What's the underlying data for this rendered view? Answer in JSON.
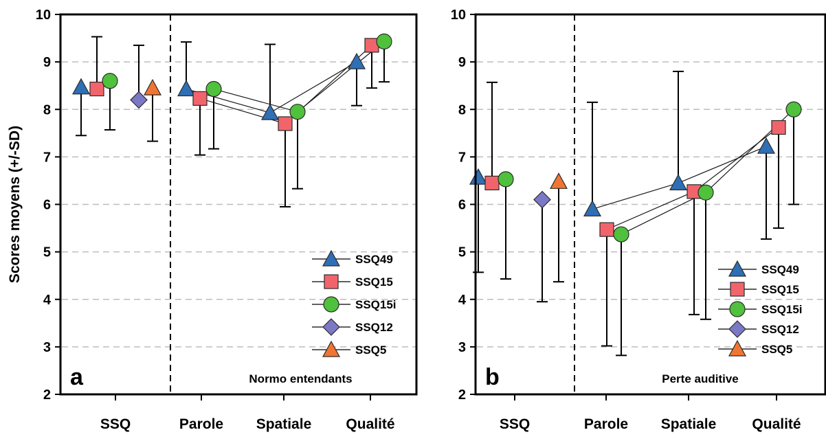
{
  "colors": {
    "SSQ49": "#2f6fb5",
    "SSQ15": "#f2646b",
    "SSQ15i": "#4fc13c",
    "SSQ12": "#7b79c6",
    "SSQ5": "#f07532"
  },
  "chart_data": [
    {
      "type": "scatter",
      "title": "",
      "ylabel": "Scores moyens (+/-SD)",
      "ylim": [
        2,
        10
      ],
      "yticks": [
        2,
        3,
        4,
        5,
        6,
        7,
        8,
        9,
        10
      ],
      "grid": "horizontal dashed",
      "legend_position": "bottom-right",
      "panel_letter": "a",
      "group_label": "Normo entendants",
      "categories": [
        "SSQ",
        "Parole",
        "Spatiale",
        "Qualité"
      ],
      "series": [
        {
          "name": "SSQ49",
          "marker": "triangle-up",
          "values": [
            8.47,
            8.43,
            7.93,
            9.0
          ],
          "sd_low": [
            7.45,
            null,
            null,
            8.08
          ],
          "sd_high": [
            null,
            9.42,
            9.37,
            null
          ],
          "connected": [
            1,
            2,
            3
          ]
        },
        {
          "name": "SSQ15",
          "marker": "square",
          "values": [
            8.43,
            8.23,
            7.7,
            9.35
          ],
          "sd_low": [
            null,
            7.04,
            5.95,
            8.45
          ],
          "sd_high": [
            9.53,
            null,
            null,
            null
          ],
          "connected": [
            1,
            2,
            3
          ]
        },
        {
          "name": "SSQ15i",
          "marker": "circle",
          "values": [
            8.6,
            8.43,
            7.95,
            9.43
          ],
          "sd_low": [
            7.57,
            7.17,
            6.33,
            8.58
          ],
          "sd_high": [
            null,
            null,
            null,
            null
          ],
          "connected": [
            1,
            2,
            3
          ]
        },
        {
          "name": "SSQ12",
          "marker": "diamond",
          "values": [
            8.2,
            null,
            null,
            null
          ],
          "sd_low": [
            null,
            null,
            null,
            null
          ],
          "sd_high": [
            9.35,
            null,
            null,
            null
          ],
          "connected": []
        },
        {
          "name": "SSQ5",
          "marker": "triangle-up",
          "values": [
            8.45,
            null,
            null,
            null
          ],
          "sd_low": [
            7.33,
            null,
            null,
            null
          ],
          "sd_high": [
            null,
            null,
            null,
            null
          ],
          "connected": []
        }
      ]
    },
    {
      "type": "scatter",
      "title": "",
      "ylabel": "",
      "ylim": [
        2,
        10
      ],
      "yticks": [
        2,
        3,
        4,
        5,
        6,
        7,
        8,
        9,
        10
      ],
      "grid": "horizontal dashed",
      "legend_position": "bottom-right",
      "panel_letter": "b",
      "group_label": "Perte auditive",
      "categories": [
        "SSQ",
        "Parole",
        "Spatiale",
        "Qualité"
      ],
      "series": [
        {
          "name": "SSQ49",
          "marker": "triangle-up",
          "values": [
            6.57,
            5.9,
            6.45,
            7.22
          ],
          "sd_low": [
            4.57,
            null,
            null,
            5.27
          ],
          "sd_high": [
            null,
            8.15,
            8.8,
            null
          ],
          "connected": [
            1,
            2,
            3
          ]
        },
        {
          "name": "SSQ15",
          "marker": "square",
          "values": [
            6.45,
            5.47,
            6.27,
            7.62
          ],
          "sd_low": [
            null,
            3.02,
            3.68,
            5.5
          ],
          "sd_high": [
            8.57,
            null,
            null,
            null
          ],
          "connected": [
            1,
            2,
            3
          ]
        },
        {
          "name": "SSQ15i",
          "marker": "circle",
          "values": [
            6.53,
            5.37,
            6.25,
            8.0
          ],
          "sd_low": [
            4.43,
            2.82,
            3.58,
            6.0
          ],
          "sd_high": [
            null,
            null,
            null,
            null
          ],
          "connected": [
            1,
            2,
            3
          ]
        },
        {
          "name": "SSQ12",
          "marker": "diamond",
          "values": [
            6.1,
            null,
            null,
            null
          ],
          "sd_low": [
            3.95,
            null,
            null,
            null
          ],
          "sd_high": [
            null,
            null,
            null,
            null
          ],
          "connected": []
        },
        {
          "name": "SSQ5",
          "marker": "triangle-up",
          "values": [
            6.48,
            null,
            null,
            null
          ],
          "sd_low": [
            4.37,
            null,
            null,
            null
          ],
          "sd_high": [
            null,
            null,
            null,
            null
          ],
          "connected": []
        }
      ]
    }
  ]
}
